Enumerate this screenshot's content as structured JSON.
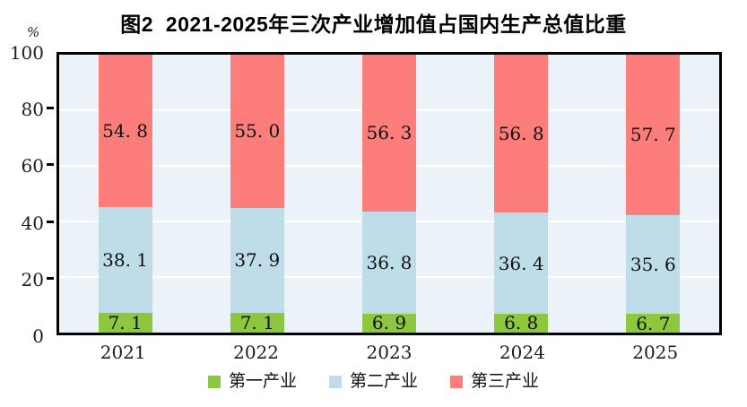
{
  "figure": {
    "title": "图2  2021-2025年三次产业增加值占国内生产总值比重"
  },
  "y_axis": {
    "unit": "%",
    "tick_values": [
      0,
      20,
      40,
      60,
      80,
      100
    ],
    "tick_labels": [
      "0",
      "20",
      "40",
      "60",
      "80",
      "100"
    ],
    "gridline_values": [
      20,
      40,
      60,
      80
    ]
  },
  "chart_data": {
    "type": "bar",
    "stacked": true,
    "title": "图2  2021-2025年三次产业增加值占国内生产总值比重",
    "categories": [
      "2021",
      "2022",
      "2023",
      "2024",
      "2025"
    ],
    "series": [
      {
        "name": "第一产业",
        "color": "#8dc63f",
        "values": [
          7.1,
          7.1,
          6.9,
          6.8,
          6.7
        ],
        "labels": [
          "7. 1",
          "7. 1",
          "6. 9",
          "6. 8",
          "6. 7"
        ]
      },
      {
        "name": "第二产业",
        "color": "#bedde9",
        "values": [
          38.1,
          37.9,
          36.8,
          36.4,
          35.6
        ],
        "labels": [
          "38. 1",
          "37. 9",
          "36. 8",
          "36. 4",
          "35. 6"
        ]
      },
      {
        "name": "第三产业",
        "color": "#fc7d79",
        "values": [
          54.8,
          55.0,
          56.3,
          56.8,
          57.7
        ],
        "labels": [
          "54. 8",
          "55. 0",
          "56. 3",
          "56. 8",
          "57. 7"
        ]
      }
    ],
    "xlabel": "",
    "ylabel": "%",
    "ylim": [
      0,
      100
    ],
    "grid": true,
    "gridline_color": "#ffffff",
    "plot_background": "#ecf3f8",
    "axis_color": "#000000",
    "legend_position": "bottom"
  }
}
